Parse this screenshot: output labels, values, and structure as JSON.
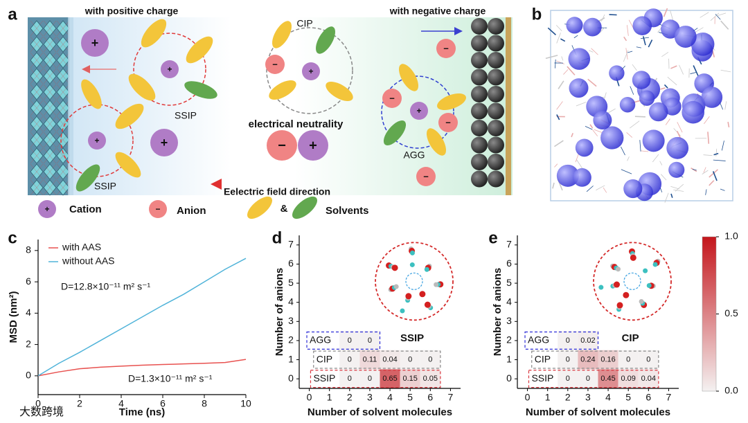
{
  "panel_labels": [
    "a",
    "b",
    "c",
    "d",
    "e"
  ],
  "schematic": {
    "positive_side": "with positive charge",
    "negative_side": "with negative charge",
    "cip": "CIP",
    "ssip": "SSIP",
    "neutrality": "electrical neutrality",
    "agg": "AGG",
    "field": "Eelectric field direction",
    "cation_symbol": "+",
    "anion_symbol": "−",
    "legend": {
      "cation": "Cation",
      "anion": "Anion",
      "and": "&",
      "solvents": "Solvents"
    }
  },
  "watermark": "大数跨境",
  "chart_data": [
    {
      "type": "line",
      "xlabel": "Time (ns)",
      "ylabel": "MSD (nm²)",
      "x": [
        0,
        1,
        2,
        3,
        4,
        5,
        6,
        7,
        8,
        9,
        10
      ],
      "series": [
        {
          "name": "with AAS",
          "color": "#e8514f",
          "values": [
            0,
            0.25,
            0.45,
            0.55,
            0.62,
            0.68,
            0.72,
            0.76,
            0.8,
            0.85,
            1.05
          ]
        },
        {
          "name": "without AAS",
          "color": "#4fb3d9",
          "values": [
            0,
            0.8,
            1.5,
            2.25,
            3.0,
            3.75,
            4.5,
            5.2,
            6.0,
            6.8,
            7.5
          ]
        }
      ],
      "annotations": [
        "D=12.8×10⁻¹¹ m² s⁻¹",
        "D=1.3×10⁻¹¹ m² s⁻¹"
      ],
      "xlim": [
        0,
        10
      ],
      "xticks": [
        0,
        2,
        4,
        6,
        8,
        10
      ],
      "ylim": [
        -1.2,
        8.7
      ],
      "yticks": [
        0,
        2,
        4,
        6,
        8
      ]
    },
    {
      "type": "heatmap",
      "xlabel": "Number of solvent molecules",
      "ylabel": "Number of anions",
      "inset_label": "SSIP",
      "xlim": [
        -0.5,
        7.5
      ],
      "xticks": [
        0,
        1,
        2,
        3,
        4,
        5,
        6,
        7
      ],
      "ylim": [
        -0.5,
        7.5
      ],
      "yticks": [
        0,
        1,
        2,
        3,
        4,
        5,
        6,
        7
      ],
      "rows": [
        {
          "name": "SSIP",
          "color": "#d9363e",
          "y": 0,
          "x": [
            2,
            3,
            4,
            5,
            6
          ],
          "values": [
            0,
            0,
            0.65,
            0.15,
            0.05
          ]
        },
        {
          "name": "CIP",
          "color": "#888888",
          "y": 1,
          "x": [
            2,
            3,
            4,
            5,
            6
          ],
          "values": [
            0,
            0.11,
            0.04,
            0,
            0
          ]
        },
        {
          "name": "AGG",
          "color": "#2a2ad6",
          "y": 2,
          "x": [
            2,
            3
          ],
          "values": [
            0,
            0
          ]
        }
      ]
    },
    {
      "type": "heatmap",
      "xlabel": "Number of solvent molecules",
      "ylabel": "Number of anions",
      "inset_label": "CIP",
      "xlim": [
        -0.5,
        7.5
      ],
      "xticks": [
        0,
        1,
        2,
        3,
        4,
        5,
        6,
        7
      ],
      "ylim": [
        -0.5,
        7.5
      ],
      "yticks": [
        0,
        1,
        2,
        3,
        4,
        5,
        6,
        7
      ],
      "rows": [
        {
          "name": "SSIP",
          "color": "#d9363e",
          "y": 0,
          "x": [
            2,
            3,
            4,
            5,
            6
          ],
          "values": [
            0,
            0,
            0.45,
            0.09,
            0.04
          ]
        },
        {
          "name": "CIP",
          "color": "#888888",
          "y": 1,
          "x": [
            2,
            3,
            4,
            5,
            6
          ],
          "values": [
            0,
            0.24,
            0.16,
            0,
            0
          ]
        },
        {
          "name": "AGG",
          "color": "#2a2ad6",
          "y": 2,
          "x": [
            2,
            3
          ],
          "values": [
            0,
            0.02
          ]
        }
      ]
    }
  ],
  "colorbar": {
    "colorscale": [
      "#f4f1f1",
      "#c4161c"
    ],
    "zlim": [
      0,
      1
    ],
    "ticks": [
      {
        "value": 0,
        "label": "0.0"
      },
      {
        "value": 0.5,
        "label": "0.5"
      },
      {
        "value": 1,
        "label": "1.0"
      }
    ]
  }
}
